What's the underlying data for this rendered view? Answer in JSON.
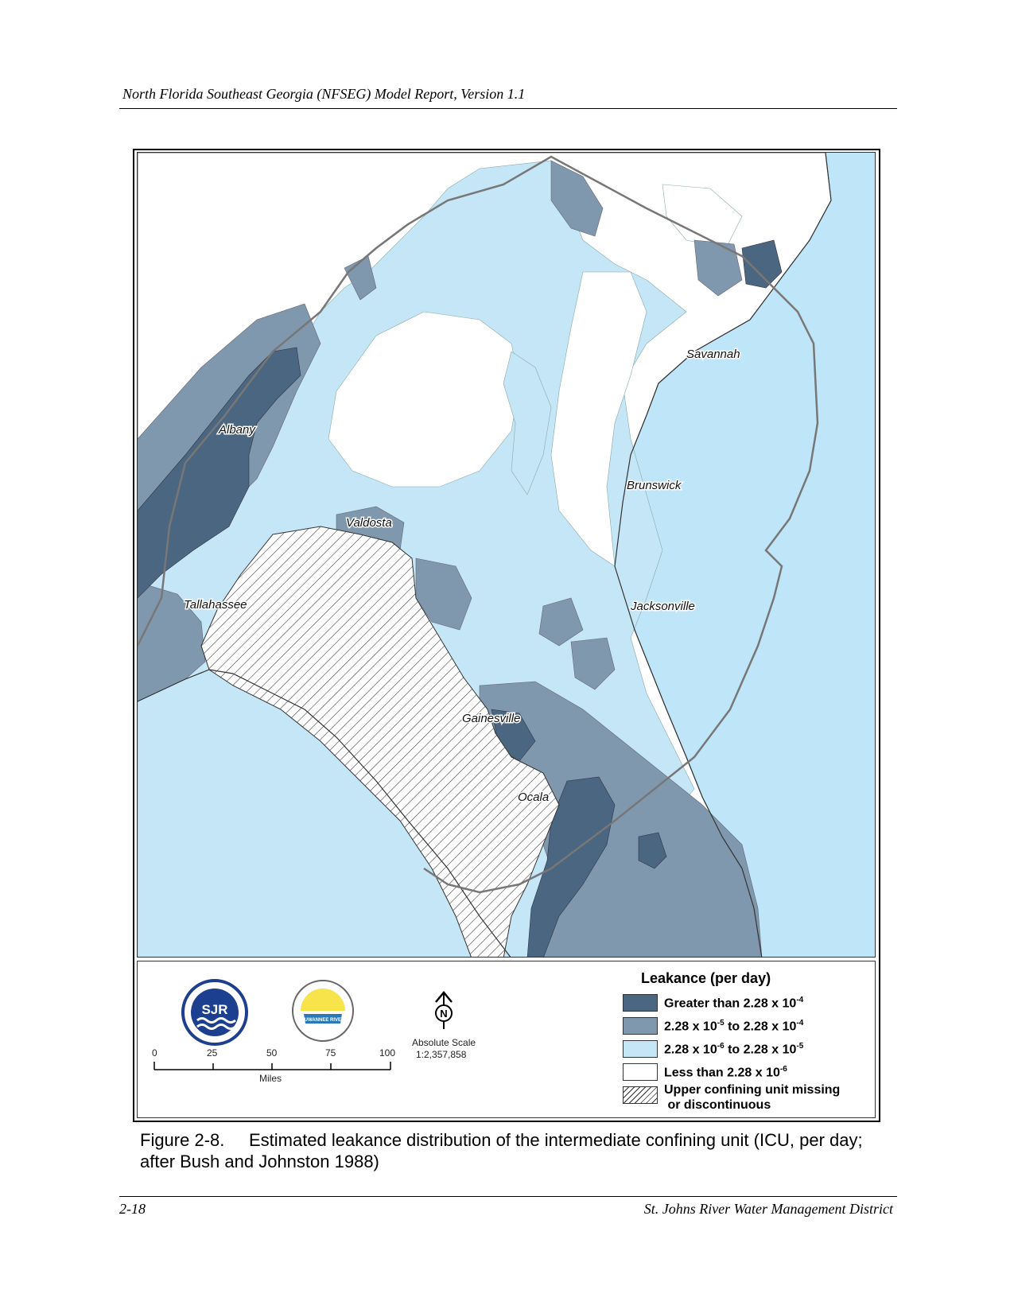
{
  "header": {
    "title": "North Florida Southeast Georgia (NFSEG) Model Report, Version 1.1"
  },
  "map": {
    "cities": {
      "savannah": "Savannah",
      "albany": "Albany",
      "brunswick": "Brunswick",
      "valdosta": "Valdosta",
      "tallahassee": "Tallahassee",
      "jacksonville": "Jacksonville",
      "gainesville": "Gainesville",
      "ocala": "Ocala"
    },
    "colors": {
      "ocean": "#bfe6f8",
      "greater": "#4b6680",
      "mid": "#7f98ad",
      "low": "#c5e6f7",
      "least": "#ffffff"
    }
  },
  "legend": {
    "title": "Leakance (per day)",
    "items": [
      {
        "label": "Greater than 2.28 x 10",
        "exp": "-4",
        "suffix": "",
        "color": "#4b6680"
      },
      {
        "label": "2.28 x 10",
        "exp": "-5",
        "suffix": " to 2.28 x 10",
        "exp2": "-4",
        "color": "#7f98ad"
      },
      {
        "label": "2.28 x 10",
        "exp": "-6",
        "suffix": " to 2.28 x 10",
        "exp2": "-5",
        "color": "#c5e6f7"
      },
      {
        "label": "Less than 2.28 x 10",
        "exp": "-6",
        "suffix": "",
        "color": "#ffffff"
      }
    ],
    "missing_line1": "Upper confining unit missing",
    "missing_line2": "or discontinuous"
  },
  "logos": {
    "sjr": "SJR",
    "srwmd": "SUWANNEE RIVER"
  },
  "north_arrow": "N",
  "scale": {
    "ticks": [
      "0",
      "25",
      "50",
      "75",
      "100"
    ],
    "unit": "Miles",
    "absolute_label": "Absolute Scale",
    "absolute_value": "1:2,357,858"
  },
  "caption": {
    "number": "Figure 2-8.",
    "text": "Estimated leakance distribution of the intermediate confining unit (ICU, per day; after Bush and Johnston 1988)"
  },
  "footer": {
    "page": "2-18",
    "org": "St. Johns River Water Management District"
  }
}
